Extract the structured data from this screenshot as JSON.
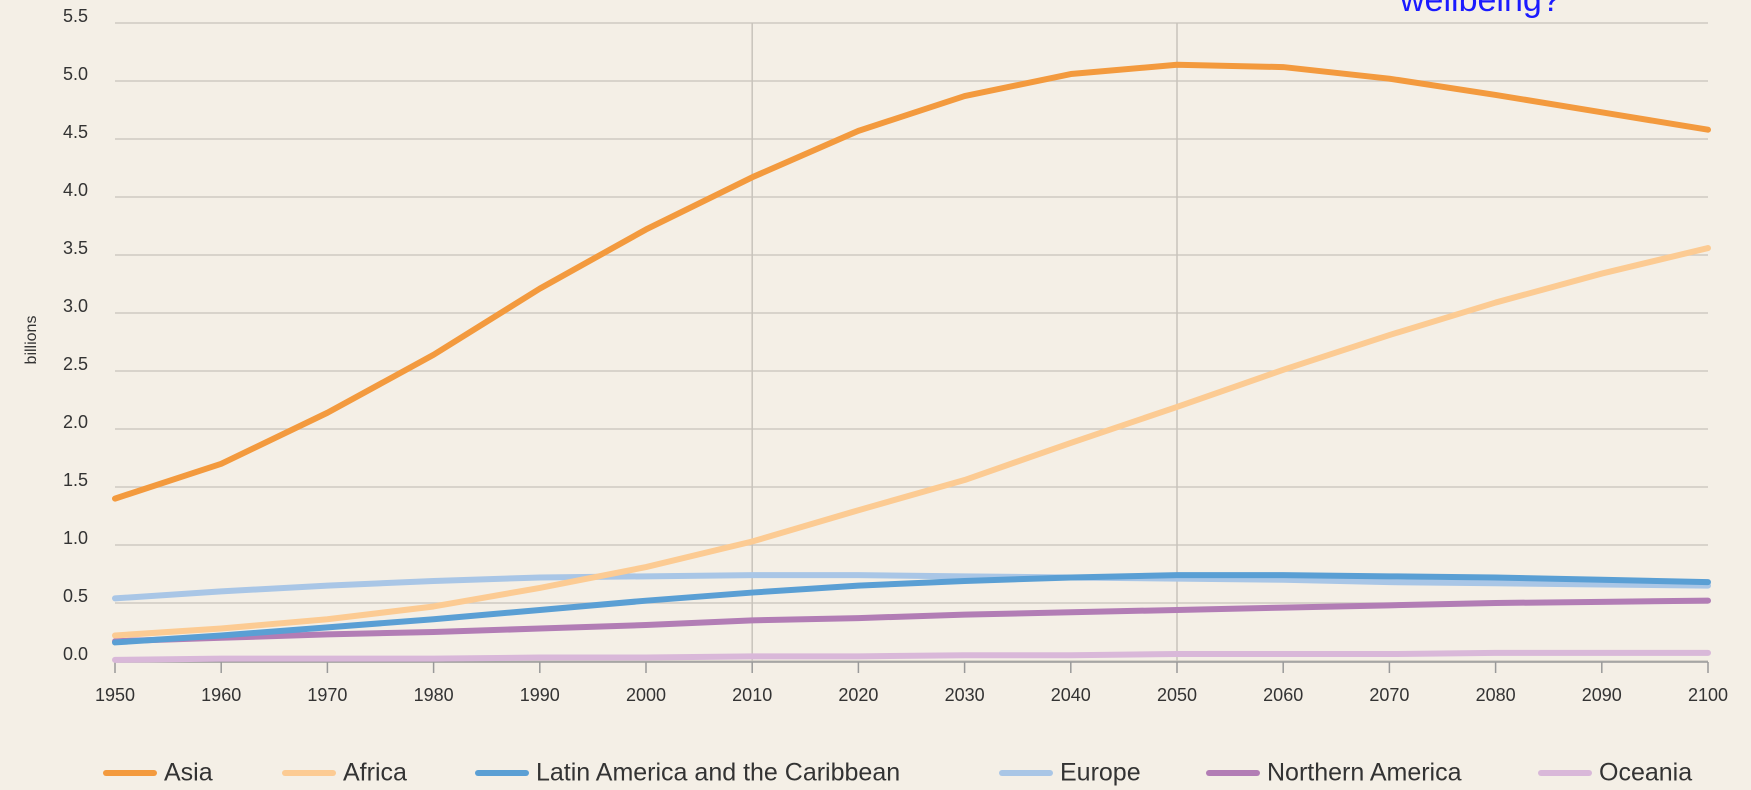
{
  "chart_data": {
    "type": "line",
    "annotation": "wellbeing?",
    "y_label": "billions",
    "x": [
      1950,
      1960,
      1970,
      1980,
      1990,
      2000,
      2010,
      2020,
      2030,
      2040,
      2050,
      2060,
      2070,
      2080,
      2090,
      2100
    ],
    "series": [
      {
        "name": "Asia",
        "color": "#f39a3e",
        "values": [
          1.4,
          1.7,
          2.14,
          2.64,
          3.21,
          3.72,
          4.17,
          4.57,
          4.87,
          5.06,
          5.14,
          5.12,
          5.02,
          4.88,
          4.73,
          4.58
        ]
      },
      {
        "name": "Africa",
        "color": "#fccb93",
        "values": [
          0.22,
          0.28,
          0.36,
          0.47,
          0.63,
          0.81,
          1.03,
          1.3,
          1.56,
          1.88,
          2.19,
          2.51,
          2.81,
          3.09,
          3.34,
          3.56
        ]
      },
      {
        "name": "Latin America and the Caribbean",
        "color": "#5a9fd4",
        "values": [
          0.16,
          0.22,
          0.29,
          0.36,
          0.44,
          0.52,
          0.59,
          0.65,
          0.69,
          0.72,
          0.74,
          0.74,
          0.73,
          0.72,
          0.7,
          0.68
        ]
      },
      {
        "name": "Europe",
        "color": "#a9c6e6",
        "values": [
          0.54,
          0.6,
          0.65,
          0.69,
          0.72,
          0.73,
          0.74,
          0.74,
          0.73,
          0.72,
          0.71,
          0.7,
          0.68,
          0.67,
          0.66,
          0.65
        ]
      },
      {
        "name": "Northern America",
        "color": "#b27db5",
        "values": [
          0.17,
          0.2,
          0.23,
          0.25,
          0.28,
          0.31,
          0.35,
          0.37,
          0.4,
          0.42,
          0.44,
          0.46,
          0.48,
          0.5,
          0.51,
          0.52
        ]
      },
      {
        "name": "Oceania",
        "color": "#d9b8d9",
        "values": [
          0.01,
          0.02,
          0.02,
          0.02,
          0.03,
          0.03,
          0.04,
          0.04,
          0.05,
          0.05,
          0.06,
          0.06,
          0.06,
          0.07,
          0.07,
          0.07
        ]
      }
    ],
    "xlim": [
      1950,
      2100
    ],
    "xticks": [
      1950,
      1960,
      1970,
      1980,
      1990,
      2000,
      2010,
      2020,
      2030,
      2040,
      2050,
      2060,
      2070,
      2080,
      2090,
      2100
    ],
    "ylim": [
      0,
      5.5
    ],
    "yticks": [
      {
        "value": 0,
        "label": "0.0"
      },
      0.5,
      {
        "value": 1,
        "label": "1.0"
      },
      1.5,
      {
        "value": 2,
        "label": "2.0"
      },
      2.5,
      {
        "value": 3,
        "label": "3.0"
      },
      3.5,
      {
        "value": 4,
        "label": "4.0"
      },
      4.5,
      {
        "value": 5,
        "label": "5.0"
      },
      5.5
    ],
    "vertical_grid": [
      2010,
      2050
    ],
    "grid": true,
    "legend": "bottom"
  }
}
